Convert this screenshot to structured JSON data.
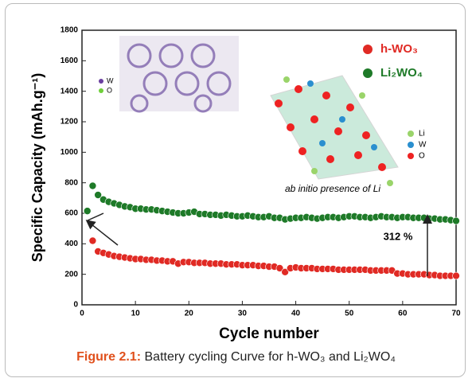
{
  "chart_data": {
    "type": "scatter",
    "x_label": "Cycle number",
    "y_label": "Specific Capacity (mAh.g⁻¹)",
    "x": [
      1,
      2,
      3,
      4,
      5,
      6,
      7,
      8,
      9,
      10,
      11,
      12,
      13,
      14,
      15,
      16,
      17,
      18,
      19,
      20,
      21,
      22,
      23,
      24,
      25,
      26,
      27,
      28,
      29,
      30,
      31,
      32,
      33,
      34,
      35,
      36,
      37,
      38,
      39,
      40,
      41,
      42,
      43,
      44,
      45,
      46,
      47,
      48,
      49,
      50,
      51,
      52,
      53,
      54,
      55,
      56,
      57,
      58,
      59,
      60,
      61,
      62,
      63,
      64,
      65,
      66,
      67,
      68,
      69,
      70
    ],
    "series": [
      {
        "name": "h-WO₃",
        "color": "#e02a24",
        "values": [
          null,
          420,
          350,
          340,
          330,
          320,
          315,
          310,
          305,
          300,
          300,
          295,
          295,
          290,
          290,
          285,
          285,
          270,
          280,
          280,
          275,
          275,
          275,
          270,
          270,
          270,
          265,
          265,
          265,
          260,
          260,
          260,
          255,
          255,
          250,
          250,
          240,
          215,
          240,
          245,
          240,
          240,
          240,
          235,
          235,
          235,
          235,
          230,
          230,
          230,
          230,
          230,
          230,
          225,
          225,
          225,
          225,
          225,
          205,
          205,
          200,
          200,
          200,
          200,
          195,
          195,
          190,
          190,
          190,
          190
        ]
      },
      {
        "name": "Li₂WO₄",
        "color": "#1e7a28",
        "values": [
          615,
          780,
          720,
          690,
          675,
          665,
          655,
          645,
          640,
          630,
          630,
          625,
          625,
          620,
          615,
          610,
          605,
          600,
          600,
          605,
          610,
          595,
          595,
          590,
          590,
          585,
          590,
          585,
          580,
          580,
          585,
          580,
          575,
          575,
          580,
          570,
          570,
          560,
          565,
          570,
          570,
          575,
          570,
          565,
          570,
          575,
          575,
          570,
          575,
          580,
          580,
          575,
          575,
          570,
          575,
          580,
          575,
          575,
          570,
          575,
          575,
          570,
          570,
          570,
          565,
          565,
          560,
          560,
          555,
          550
        ]
      }
    ],
    "xlim": [
      0,
      70
    ],
    "xticks": [
      0,
      10,
      20,
      30,
      40,
      50,
      60,
      70
    ],
    "ylim": [
      0,
      1800
    ],
    "yticks": [
      0,
      200,
      400,
      600,
      800,
      1000,
      1200,
      1400,
      1600,
      1800
    ],
    "annotations": [
      "312 %",
      "ab initio presence of Li"
    ],
    "inset_labels": [
      "W",
      "O",
      "Li",
      "W",
      "O"
    ]
  },
  "caption": {
    "label": "Figure 2.1:",
    "text": "Battery cycling Curve for h-WO₃ and Li₂WO₄"
  }
}
